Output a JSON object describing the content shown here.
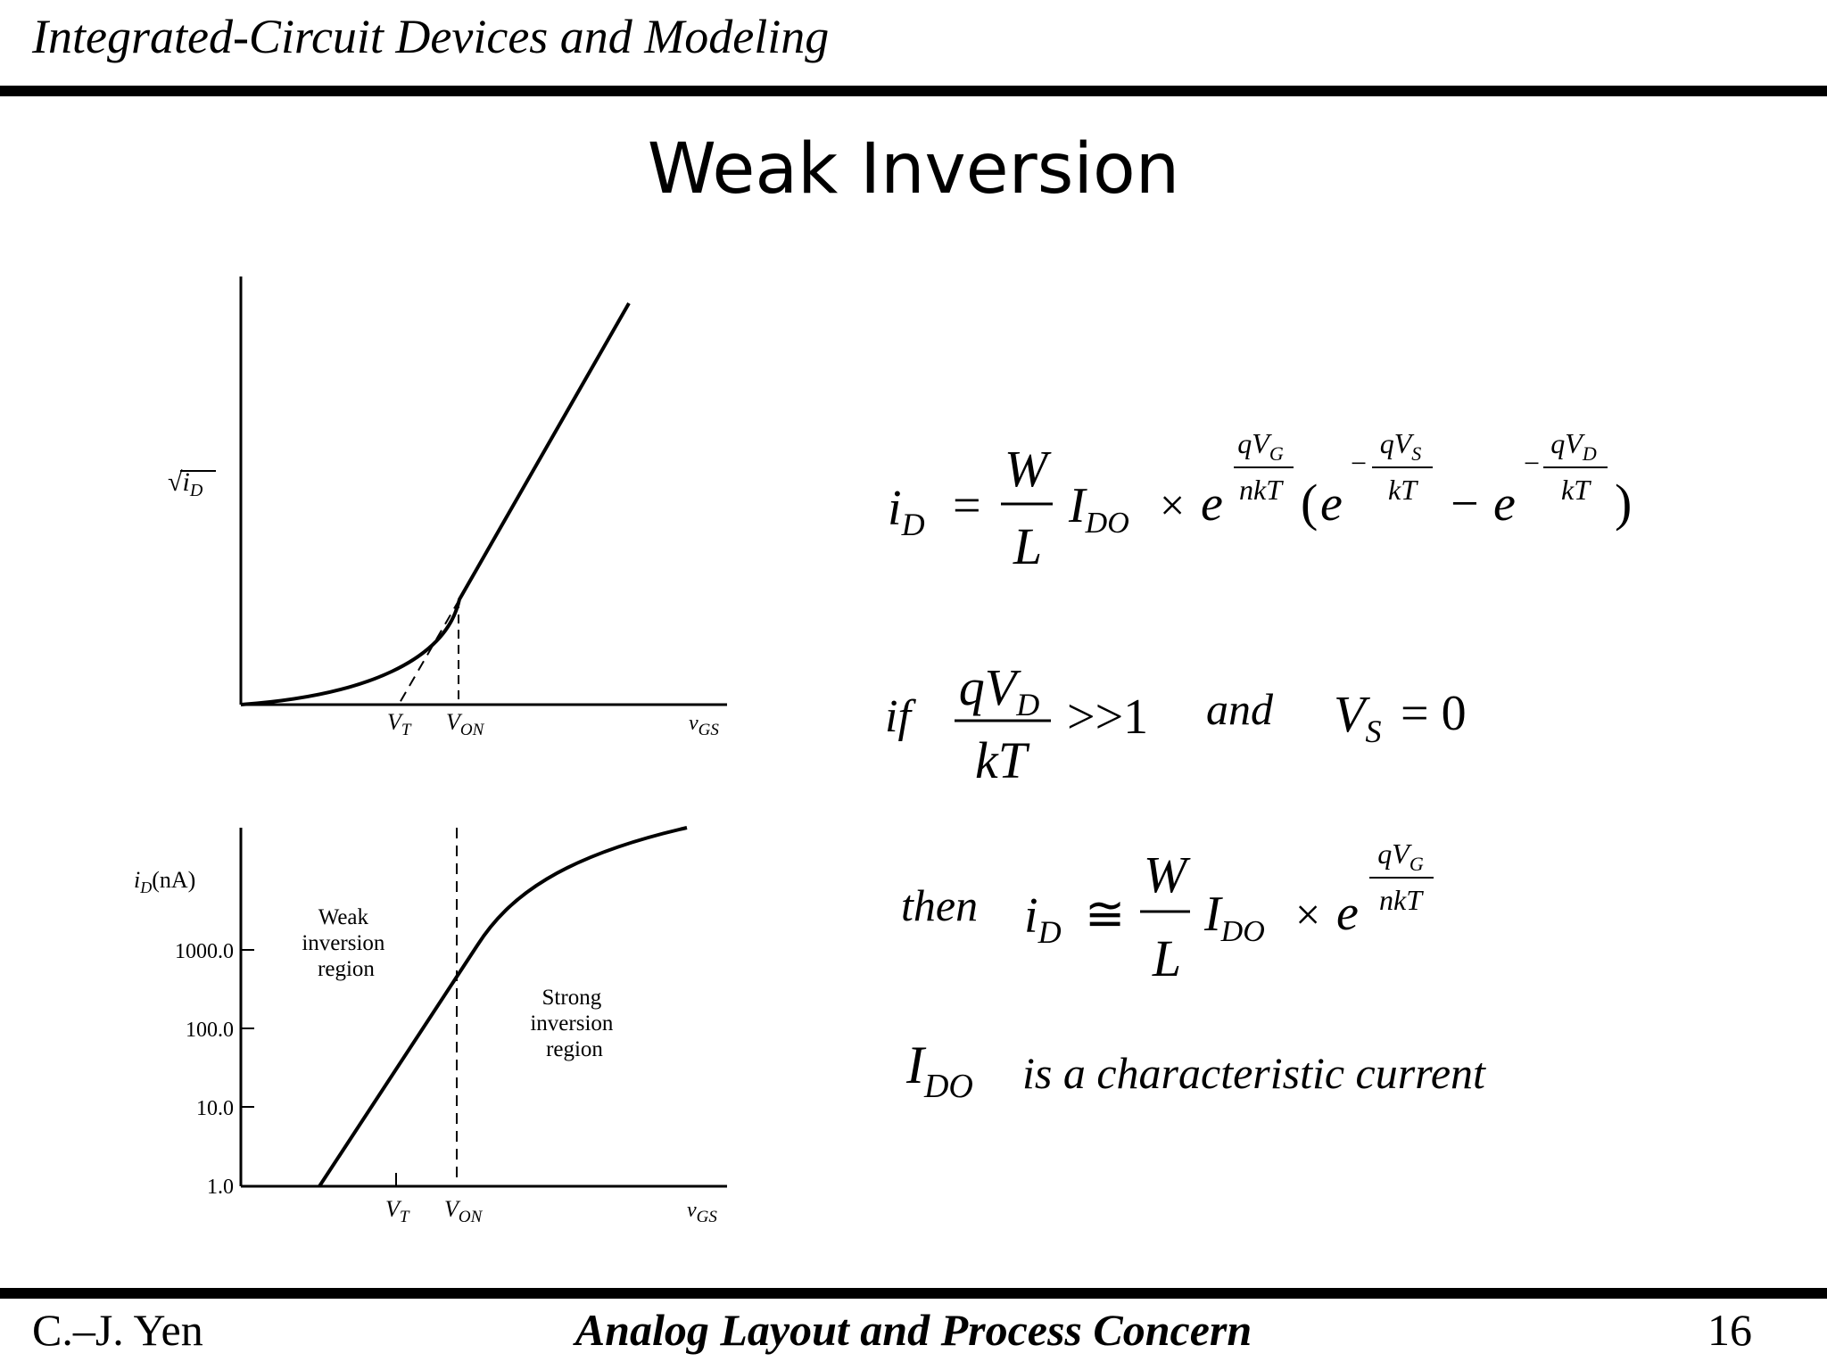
{
  "header": {
    "course": "Integrated-Circuit Devices and Modeling"
  },
  "slide": {
    "title": "Weak Inversion"
  },
  "figure": {
    "top": {
      "ylabel": "√i",
      "ylabel_sub": "D",
      "ticks": [
        {
          "main": "V",
          "sub": "T"
        },
        {
          "main": "V",
          "sub": "ON"
        },
        {
          "main": "v",
          "sub": "GS"
        }
      ]
    },
    "bottom": {
      "ylabel": "i",
      "ylabel_sub": "D",
      "ylabel_unit": "(nA)",
      "yticks": [
        "1000.0",
        "100.0",
        "10.0",
        "1.0"
      ],
      "weak_region": [
        "Weak",
        "inversion",
        "region"
      ],
      "strong_region": [
        "Strong",
        "inversion",
        "region"
      ],
      "ticks": [
        {
          "main": "V",
          "sub": "T"
        },
        {
          "main": "V",
          "sub": "ON"
        },
        {
          "main": "v",
          "sub": "GS"
        }
      ]
    }
  },
  "equations": {
    "eq1": {
      "lhs": "i",
      "lhs_sub": "D",
      "eq": "=",
      "frac_num": "W",
      "frac_den": "L",
      "coef": "I",
      "coef_sub": "DO",
      "times": "×",
      "exp_base": "e",
      "exp_num": "qV",
      "exp_num_sub": "G",
      "exp_den": "nkT",
      "open": "(",
      "e": "e",
      "minus": "−",
      "exp2_num": "qV",
      "exp2_num_sub": "S",
      "exp2_den": "kT",
      "exp3_num": "qV",
      "exp3_num_sub": "D",
      "exp3_den": "kT",
      "close": ")"
    },
    "cond": {
      "if": "if",
      "num": "qV",
      "num_sub": "D",
      "den": "kT",
      "gg": ">>1",
      "and": "and",
      "vs": "V",
      "vs_sub": "S",
      "eq0": "= 0"
    },
    "eq2": {
      "then": "then",
      "lhs": "i",
      "lhs_sub": "D",
      "approx": "≅",
      "frac_num": "W",
      "frac_den": "L",
      "coef": "I",
      "coef_sub": "DO",
      "times": "×",
      "exp_base": "e",
      "exp_num": "qV",
      "exp_num_sub": "G",
      "exp_den": "nkT"
    },
    "note": {
      "sym": "I",
      "sym_sub": "DO",
      "text": "is a characteristic current"
    }
  },
  "footer": {
    "author": "C.–J. Yen",
    "title": "Analog Layout and Process Concern",
    "page": "16"
  }
}
